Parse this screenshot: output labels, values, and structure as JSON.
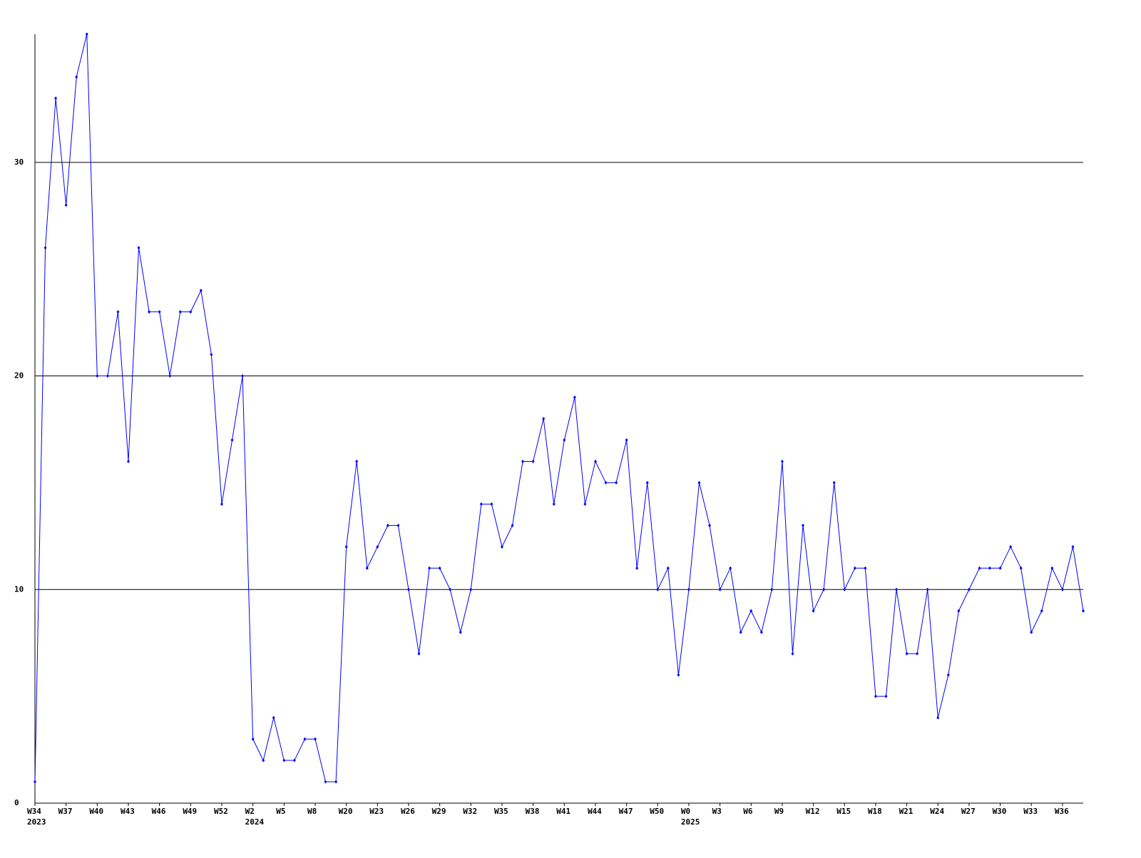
{
  "chart_data": {
    "type": "line",
    "categories": [
      "W34",
      null,
      null,
      "W37",
      null,
      null,
      "W40",
      null,
      null,
      "W43",
      null,
      null,
      "W46",
      null,
      null,
      "W49",
      null,
      null,
      "W52",
      null,
      null,
      "W2",
      null,
      null,
      "W5",
      null,
      null,
      "W8",
      null,
      null,
      "W20",
      null,
      null,
      "W23",
      null,
      null,
      "W26",
      null,
      null,
      "W29",
      null,
      null,
      "W32",
      null,
      null,
      "W35",
      null,
      null,
      "W38",
      null,
      null,
      "W41",
      null,
      null,
      "W44",
      null,
      null,
      "W47",
      null,
      null,
      "W50",
      null,
      null,
      "W0",
      null,
      null,
      "W3",
      null,
      null,
      "W6",
      null,
      null,
      "W9",
      null,
      null,
      "W12",
      null,
      null,
      "W15",
      null,
      null,
      "W18",
      null,
      null,
      "W21",
      null,
      null,
      "W24",
      null,
      null,
      "W27",
      null,
      null,
      "W30",
      null,
      null,
      "W33",
      null,
      null,
      "W36",
      null,
      null
    ],
    "category_years": [
      "2023",
      null,
      null,
      null,
      null,
      null,
      null,
      null,
      null,
      null,
      null,
      null,
      null,
      null,
      null,
      null,
      null,
      null,
      null,
      null,
      null,
      "2024",
      null,
      null,
      null,
      null,
      null,
      null,
      null,
      null,
      null,
      null,
      null,
      null,
      null,
      null,
      null,
      null,
      null,
      null,
      null,
      null,
      null,
      null,
      null,
      null,
      null,
      null,
      null,
      null,
      null,
      null,
      null,
      null,
      null,
      null,
      null,
      null,
      null,
      null,
      null,
      null,
      null,
      "2025",
      null,
      null,
      null,
      null,
      null,
      null,
      null,
      null,
      null,
      null,
      null,
      null,
      null,
      null,
      null,
      null,
      null,
      null,
      null,
      null,
      null,
      null,
      null,
      null,
      null,
      null,
      null,
      null,
      null,
      null,
      null,
      null,
      null,
      null,
      null,
      null
    ],
    "series": [
      {
        "color": "#0000ff",
        "values": [
          1,
          26,
          33,
          28,
          34,
          36,
          20,
          20,
          23,
          16,
          26,
          23,
          23,
          20,
          23,
          23,
          24,
          21,
          14,
          17,
          20,
          3,
          2,
          4,
          2,
          2,
          3,
          3,
          1,
          1,
          12,
          16,
          11,
          12,
          13,
          13,
          10,
          7,
          11,
          11,
          10,
          8,
          10,
          14,
          14,
          12,
          13,
          16,
          16,
          18,
          14,
          17,
          19,
          14,
          16,
          15,
          15,
          17,
          11,
          15,
          10,
          11,
          6,
          10,
          15,
          13,
          10,
          11,
          8,
          9,
          8,
          10,
          16,
          7,
          13,
          9,
          10,
          15,
          10,
          11,
          11,
          5,
          5,
          10,
          7,
          7,
          10,
          4,
          6,
          9,
          10,
          11,
          11,
          11,
          12,
          11,
          8,
          9,
          11,
          10,
          12,
          9
        ]
      }
    ],
    "ylim": [
      0,
      36
    ],
    "yticks": [
      0,
      10,
      20,
      30
    ],
    "grid": true
  }
}
